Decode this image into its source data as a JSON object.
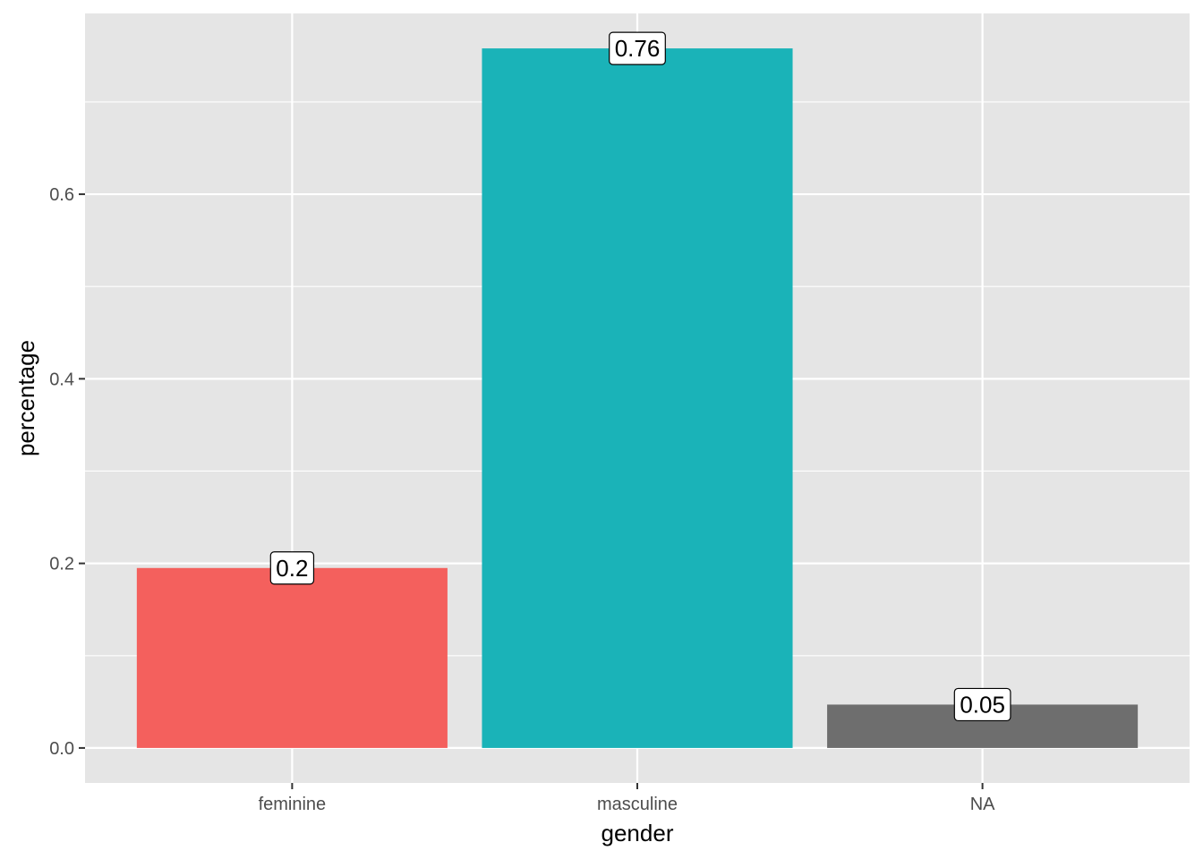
{
  "chart_data": {
    "type": "bar",
    "title": "",
    "xlabel": "gender",
    "ylabel": "percentage",
    "categories": [
      "feminine",
      "masculine",
      "NA"
    ],
    "values": [
      0.195,
      0.758,
      0.047
    ],
    "data_labels": [
      "0.2",
      "0.76",
      "0.05"
    ],
    "colors": [
      "#F4605D",
      "#1AB3B8",
      "#6E6E6E"
    ],
    "ylim": [
      -0.0379,
      0.7959
    ],
    "yticks": [
      0.0,
      0.2,
      0.4,
      0.6
    ],
    "ytick_labels": [
      "0.0",
      "0.2",
      "0.4",
      "0.6"
    ],
    "grid": true,
    "legend": "none",
    "panel_background": "#E5E5E5",
    "gridline_color": "#FFFFFF"
  }
}
